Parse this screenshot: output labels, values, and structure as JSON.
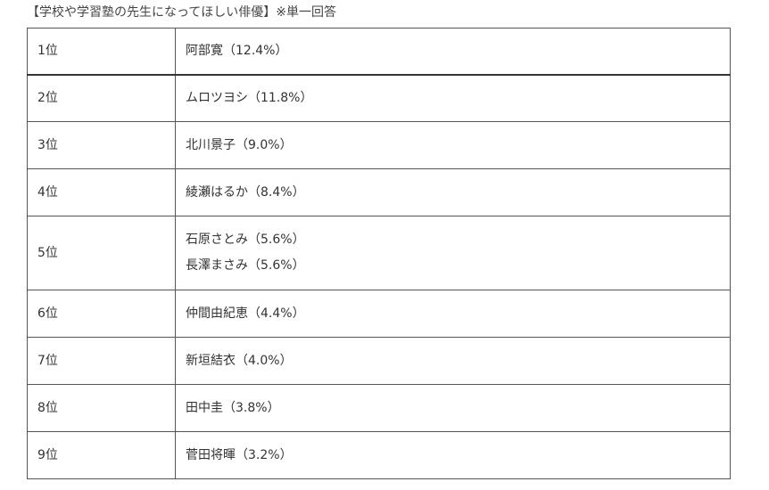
{
  "caption": "【学校や学習塾の先生になってほしい俳優】※単一回答",
  "rows": [
    {
      "rank": "1位",
      "names": [
        "阿部寛（12.4%）"
      ]
    },
    {
      "rank": "2位",
      "names": [
        "ムロツヨシ（11.8%）"
      ]
    },
    {
      "rank": "3位",
      "names": [
        "北川景子（9.0%）"
      ]
    },
    {
      "rank": "4位",
      "names": [
        "綾瀬はるか（8.4%）"
      ]
    },
    {
      "rank": "5位",
      "names": [
        "石原さとみ（5.6%）",
        "長澤まさみ（5.6%）"
      ]
    },
    {
      "rank": "6位",
      "names": [
        "仲間由紀恵（4.4%）"
      ]
    },
    {
      "rank": "7位",
      "names": [
        "新垣結衣（4.0%）"
      ]
    },
    {
      "rank": "8位",
      "names": [
        "田中圭（3.8%）"
      ]
    },
    {
      "rank": "9位",
      "names": [
        "菅田将暉（3.2%）"
      ]
    }
  ]
}
